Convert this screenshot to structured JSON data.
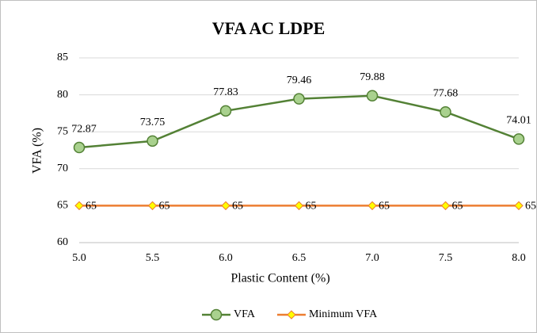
{
  "chart_data": {
    "type": "line",
    "title": "VFA AC LDPE",
    "x_label": "Plastic Content (%)",
    "y_label": "VFA (%)",
    "x": [
      5,
      5.5,
      6,
      6.5,
      7,
      7.5,
      8
    ],
    "series": [
      {
        "name": "VFA",
        "color": "#538135",
        "marker_color": "#a9d18e",
        "marker": "circle",
        "values": [
          72.87,
          73.75,
          77.83,
          79.46,
          79.88,
          77.68,
          74.01
        ]
      },
      {
        "name": "Minimum VFA",
        "color": "#ed7d31",
        "marker_color": "#ffff00",
        "marker": "diamond",
        "values": [
          65,
          65,
          65,
          65,
          65,
          65,
          65
        ]
      }
    ],
    "xlim": [
      5,
      8
    ],
    "xticks": [
      {
        "value": 5,
        "label": "5.0"
      },
      {
        "value": 5.5,
        "label": "5.5"
      },
      {
        "value": 6,
        "label": "6.0"
      },
      {
        "value": 6.5,
        "label": "6.5"
      },
      {
        "value": 7,
        "label": "7.0"
      },
      {
        "value": 7.5,
        "label": "7.5"
      },
      {
        "value": 8,
        "label": "8.0"
      }
    ],
    "ylim": [
      60,
      85
    ],
    "yticks": [
      60,
      65,
      70,
      75,
      80,
      85
    ],
    "grid": true,
    "legend": "bottom"
  }
}
